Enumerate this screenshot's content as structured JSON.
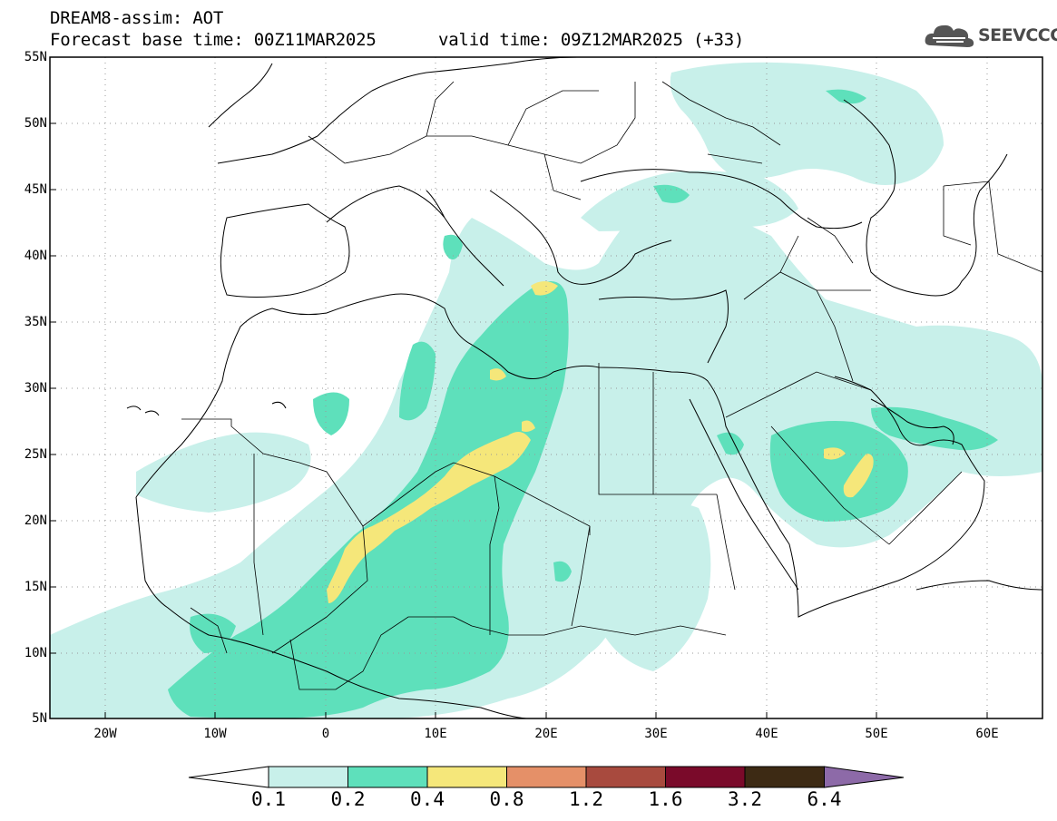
{
  "header": {
    "title": "DREAM8-assim: AOT",
    "base_time": "Forecast base time: 00Z11MAR2025",
    "valid_time": "valid time: 09Z12MAR2025 (+33)"
  },
  "logo": {
    "text": "SEEVCCC",
    "icon": "cloud-icon"
  },
  "axes": {
    "lat_labels": [
      "55N",
      "50N",
      "45N",
      "40N",
      "35N",
      "30N",
      "25N",
      "20N",
      "15N",
      "10N",
      "5N"
    ],
    "lon_labels": [
      "20W",
      "10W",
      "0",
      "10E",
      "20E",
      "30E",
      "40E",
      "50E",
      "60E"
    ],
    "lon_range": [
      -25,
      65
    ],
    "lat_range": [
      5,
      55
    ],
    "grid": true
  },
  "colorbar": {
    "labels": [
      "0.1",
      "0.2",
      "0.4",
      "0.8",
      "1.2",
      "1.6",
      "3.2",
      "6.4"
    ],
    "colors": [
      "#ffffff",
      "#c8f0ea",
      "#5ee0bb",
      "#f5e77a",
      "#e59068",
      "#a84a3e",
      "#7a0a2a",
      "#3d2a14",
      "#8d6aa8"
    ]
  },
  "legend_meaning": "Aerosol optical thickness; shades of cyan, green and yellow show dust over North Africa and the Middle East"
}
